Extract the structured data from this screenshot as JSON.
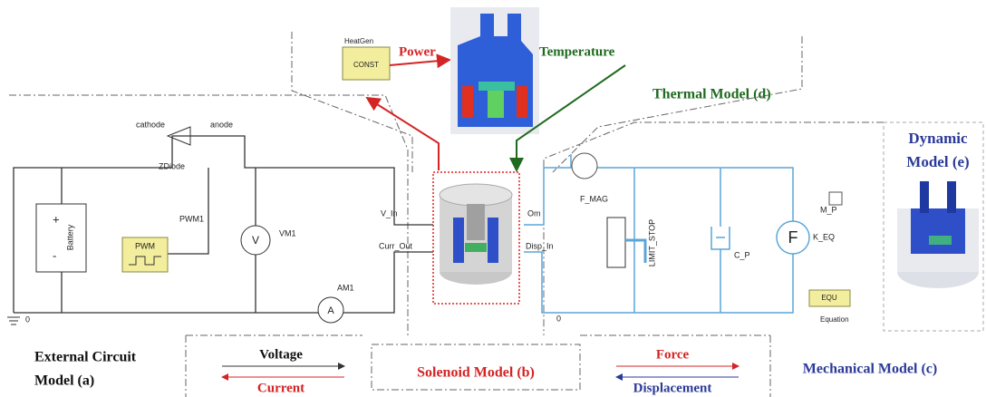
{
  "thermal": {
    "heatgen": "HeatGen",
    "const": "CONST",
    "power": "Power",
    "temperature": "Temperature",
    "title": "Thermal Model (d)"
  },
  "circuit": {
    "cathode": "cathode",
    "anode": "anode",
    "zdiode": "ZDiode",
    "pwm1": "PWM1",
    "battery": "Battery",
    "plus": "+",
    "minus": "-",
    "pwm": "PWM",
    "vm1": "VM1",
    "v": "V",
    "v_in": "V_In",
    "curr_out": "Curr_Out",
    "am1": "AM1",
    "a": "A",
    "ground": "0",
    "title_line1": "External Circuit",
    "title_line2": "Model (a)"
  },
  "links": {
    "voltage": "Voltage",
    "current": "Current",
    "force": "Force",
    "displacement": "Displacement"
  },
  "solenoid": {
    "title": "Solenoid Model (b)"
  },
  "mechanical": {
    "f_mag": "F_MAG",
    "om": "Om",
    "disp_in": "Disp_In",
    "limit_stop": "LIMIT_STOP",
    "c_p": "C_P",
    "f": "F",
    "k_eq": "K_EQ",
    "m_p": "M_P",
    "equ": "EQU",
    "equation": "Equation",
    "ground": "0",
    "title": "Mechanical Model (c)"
  },
  "dynamic": {
    "title_line1": "Dynamic",
    "title_line2": "Model (e)"
  }
}
